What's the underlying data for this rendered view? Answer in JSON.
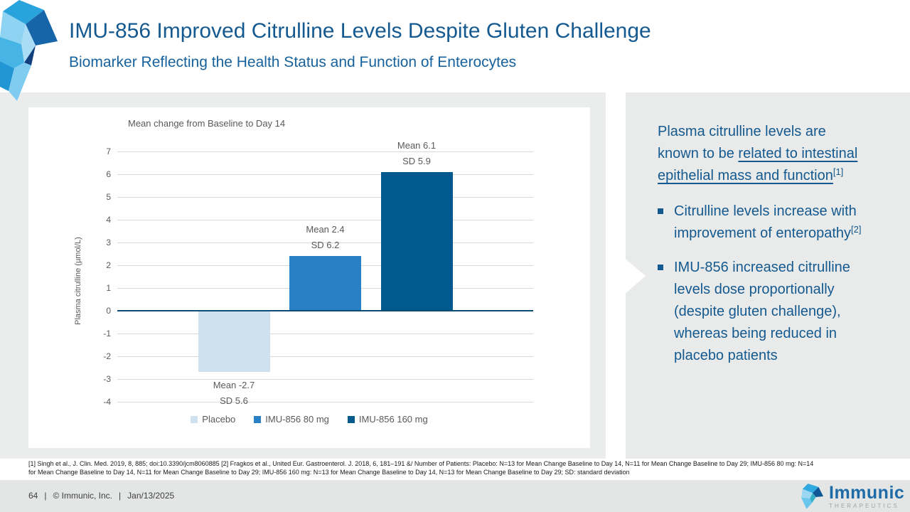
{
  "header": {
    "title": "IMU-856 Improved Citrulline Levels Despite Gluten Challenge",
    "subtitle": "Biomarker Reflecting the Health Status and Function of Enterocytes"
  },
  "chart_data": {
    "type": "bar",
    "title": "Mean change from Baseline to Day 14",
    "xlabel": "",
    "ylabel": "Plasma citrulline (µmol/L)",
    "ylim": [
      -4,
      7
    ],
    "yticks": [
      7,
      6,
      5,
      4,
      3,
      2,
      1,
      0,
      -1,
      -2,
      -3,
      -4
    ],
    "grid": true,
    "legend_position": "bottom",
    "categories": [
      "Placebo",
      "IMU-856 80 mg",
      "IMU-856 160 mg"
    ],
    "series": [
      {
        "name": "Placebo",
        "mean": -2.7,
        "sd": 5.6,
        "color": "#cfe0ee",
        "label": "Mean -2.7\nSD 5.6"
      },
      {
        "name": "IMU-856 80 mg",
        "mean": 2.4,
        "sd": 6.2,
        "color": "#2a80c4",
        "label": "Mean 2.4\nSD 6.2"
      },
      {
        "name": "IMU-856 160 mg",
        "mean": 6.1,
        "sd": 5.9,
        "color": "#02598e",
        "label": "Mean 6.1\nSD 5.9"
      }
    ],
    "axis_line_color": "#0d4d75"
  },
  "sidebar": {
    "intro": {
      "pre": "Plasma citrulline levels are known to be ",
      "underlined": "related to intestinal epithelial mass and function",
      "ref": "[1]"
    },
    "bullets": [
      {
        "text": "Citrulline levels increase with improvement of enteropathy",
        "ref": "[2]"
      },
      {
        "text": "IMU-856 increased citrulline levels dose proportionally (despite gluten challenge), whereas being reduced in placebo patients",
        "ref": ""
      }
    ]
  },
  "footnote": {
    "line1": "[1] Singh et al., J. Clin. Med. 2019, 8, 885; doi:10.3390/jcm8060885 [2] Fragkos et al., United Eur. Gastroenterol. J. 2018, 6, 181–191 &/ Number of Patients: Placebo: N=13 for Mean Change Baseline to Day 14, N=11 for Mean Change Baseline to Day 29; IMU-856 80 mg: N=14",
    "line2": "for Mean Change Baseline to Day 14, N=11 for Mean Change Baseline to Day 29; IMU-856 160 mg: N=13 for Mean Change Baseline to Day 14, N=13 for Mean Change Baseline to Day 29; SD: standard deviation"
  },
  "footer": {
    "page": "64",
    "sep1": "|",
    "copyright": "© Immunic, Inc.",
    "sep2": "|",
    "date": "Jan/13/2025",
    "logo_name": "Immunic",
    "logo_subtext": "THERAPEUTICS"
  },
  "colors": {
    "accent_blue": "#14598f",
    "panel_gray": "#e9ebea",
    "grid_gray": "#d9d9d9",
    "text_gray": "#595959"
  }
}
